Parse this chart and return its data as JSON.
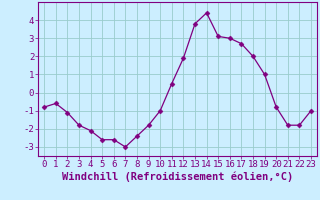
{
  "x": [
    0,
    1,
    2,
    3,
    4,
    5,
    6,
    7,
    8,
    9,
    10,
    11,
    12,
    13,
    14,
    15,
    16,
    17,
    18,
    19,
    20,
    21,
    22,
    23
  ],
  "y": [
    -0.8,
    -0.6,
    -1.1,
    -1.8,
    -2.1,
    -2.6,
    -2.6,
    -3.0,
    -2.4,
    -1.8,
    -1.0,
    0.5,
    1.9,
    3.8,
    4.4,
    3.1,
    3.0,
    2.7,
    2.0,
    1.0,
    -0.8,
    -1.8,
    -1.8,
    -1.0
  ],
  "line_color": "#800080",
  "marker": "D",
  "marker_size": 2.5,
  "bg_color": "#cceeff",
  "grid_color": "#99cccc",
  "axis_color": "#800080",
  "tick_color": "#800080",
  "xlabel": "Windchill (Refroidissement éolien,°C)",
  "ylim": [
    -3.5,
    5.0
  ],
  "xlim": [
    -0.5,
    23.5
  ],
  "yticks": [
    -3,
    -2,
    -1,
    0,
    1,
    2,
    3,
    4
  ],
  "xticks": [
    0,
    1,
    2,
    3,
    4,
    5,
    6,
    7,
    8,
    9,
    10,
    11,
    12,
    13,
    14,
    15,
    16,
    17,
    18,
    19,
    20,
    21,
    22,
    23
  ],
  "xtick_labels": [
    "0",
    "1",
    "2",
    "3",
    "4",
    "5",
    "6",
    "7",
    "8",
    "9",
    "10",
    "11",
    "12",
    "13",
    "14",
    "15",
    "16",
    "17",
    "18",
    "19",
    "20",
    "21",
    "22",
    "23"
  ],
  "font_size": 6.5,
  "xlabel_font_size": 7.5
}
